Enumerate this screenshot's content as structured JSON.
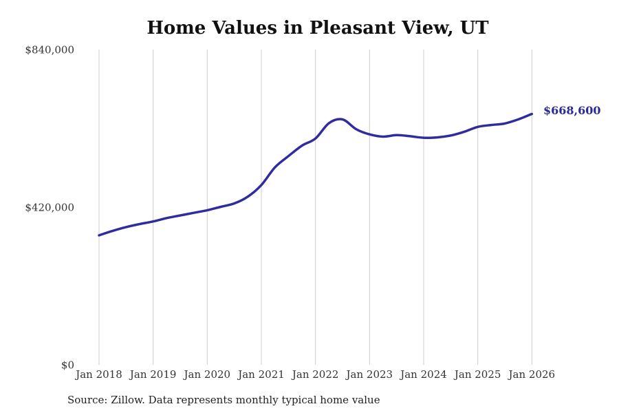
{
  "title": "Home Values in Pleasant View, UT",
  "source_note": "Source: Zillow. Data represents monthly typical home value",
  "chart_data": {
    "type": "line",
    "title": "Home Values in Pleasant View, UT",
    "series_name": "Typical home value",
    "xlabel": "",
    "ylabel": "",
    "ylim": [
      0,
      840000
    ],
    "grid": "vertical-only",
    "end_label": "$668,600",
    "end_value": 668600,
    "line_color": "#302c9e",
    "grid_color": "#cccccc",
    "label_color": "#2b2a93",
    "axis_text_color": "#333333",
    "y_ticks": [
      {
        "label": "$840,000",
        "value": 840000
      },
      {
        "label": "$420,000",
        "value": 420000
      },
      {
        "label": "$0",
        "value": 0
      }
    ],
    "x_ticks": [
      "Jan 2018",
      "Jan 2019",
      "Jan 2020",
      "Jan 2021",
      "Jan 2022",
      "Jan 2023",
      "Jan 2024",
      "Jan 2025",
      "Jan 2026"
    ],
    "x": [
      "2018-01",
      "2018-04",
      "2018-07",
      "2018-10",
      "2019-01",
      "2019-04",
      "2019-07",
      "2019-10",
      "2020-01",
      "2020-04",
      "2020-07",
      "2020-10",
      "2021-01",
      "2021-04",
      "2021-07",
      "2021-10",
      "2022-01",
      "2022-04",
      "2022-07",
      "2022-10",
      "2023-01",
      "2023-04",
      "2023-07",
      "2023-10",
      "2024-01",
      "2024-04",
      "2024-07",
      "2024-10",
      "2025-01",
      "2025-04",
      "2025-07",
      "2025-10",
      "2026-01"
    ],
    "values": [
      345000,
      357000,
      367000,
      375000,
      382000,
      391000,
      398000,
      405000,
      412000,
      421000,
      430000,
      448000,
      479000,
      526000,
      556000,
      584000,
      603000,
      644000,
      654000,
      628000,
      614000,
      608000,
      612000,
      609000,
      605000,
      606000,
      611000,
      621000,
      634000,
      639000,
      643000,
      654000,
      668600
    ]
  }
}
